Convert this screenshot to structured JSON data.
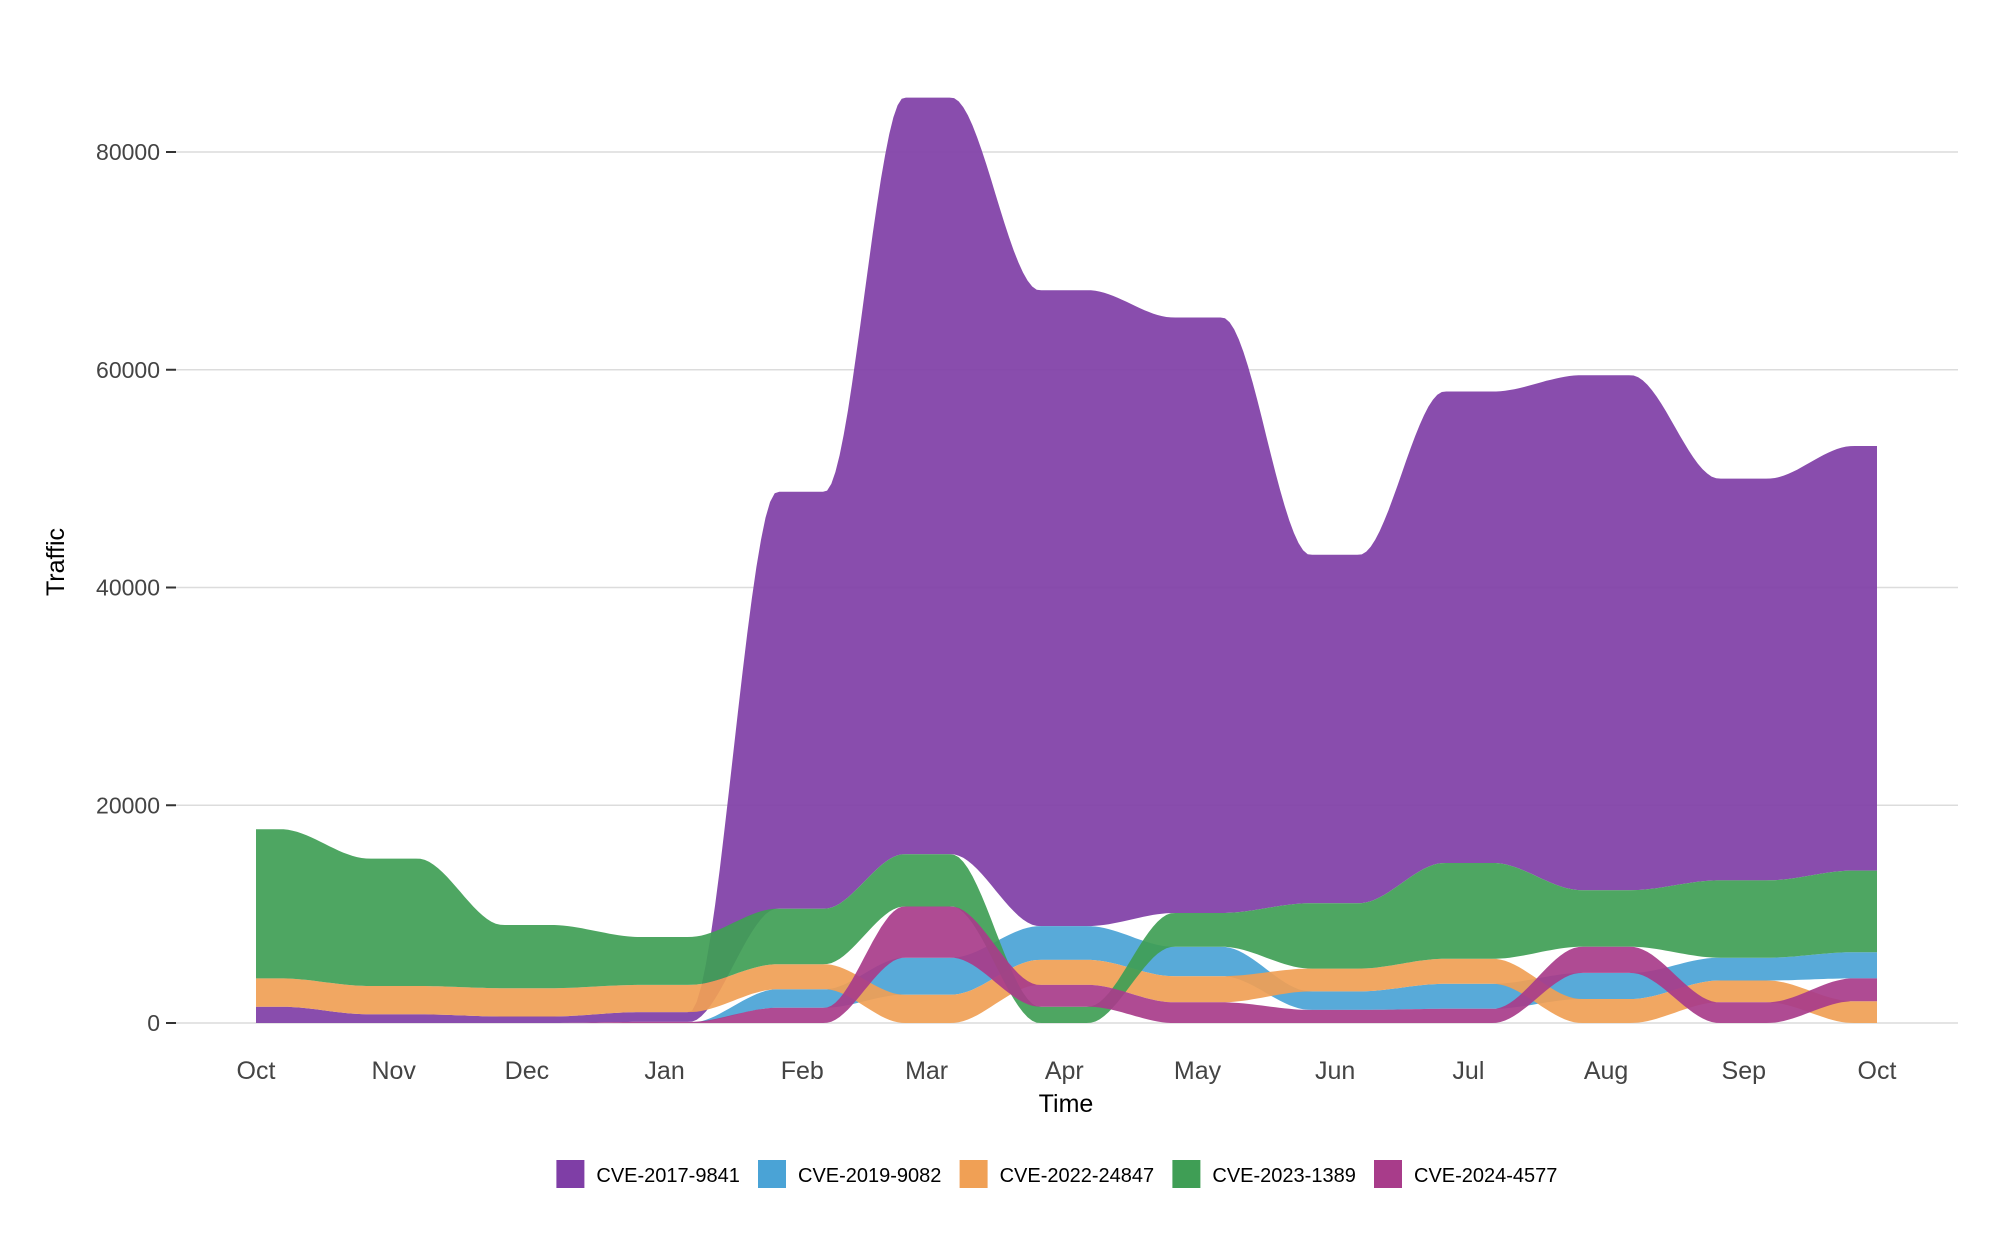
{
  "chart_data": {
    "type": "area",
    "subtype": "sorted stacked streamgraph (ridge)",
    "xlabel": "Time",
    "ylabel": "Traffic",
    "x": [
      "Oct",
      "Nov",
      "Dec",
      "Jan",
      "Feb",
      "Mar",
      "Apr",
      "May",
      "Jun",
      "Jul",
      "Aug",
      "Sep",
      "Oct"
    ],
    "yticks": [
      0,
      20000,
      40000,
      60000,
      80000
    ],
    "ylim": [
      0,
      89000
    ],
    "grid": "horizontal major",
    "legend_position": "bottom",
    "series": [
      {
        "name": "CVE-2017-9841",
        "color": "#7f3ea6",
        "values": [
          1500,
          800,
          600,
          900,
          38300,
          69500,
          58400,
          54700,
          32000,
          43300,
          47300,
          36900,
          39000
        ]
      },
      {
        "name": "CVE-2019-9082",
        "color": "#4aa3d6",
        "values": [
          0,
          0,
          0,
          0,
          1700,
          3400,
          3100,
          2700,
          1700,
          2300,
          2400,
          2100,
          2400
        ]
      },
      {
        "name": "CVE-2022-24847",
        "color": "#f0a055",
        "values": [
          2600,
          2600,
          2600,
          2500,
          2300,
          2600,
          2300,
          2400,
          2100,
          2300,
          2200,
          2000,
          2000
        ]
      },
      {
        "name": "CVE-2023-1389",
        "color": "#3f9e55",
        "values": [
          13700,
          11700,
          5800,
          4400,
          5100,
          4800,
          1500,
          3100,
          6000,
          8800,
          5200,
          7100,
          7500
        ]
      },
      {
        "name": "CVE-2024-4577",
        "color": "#a83c8a",
        "values": [
          0,
          0,
          0,
          100,
          1400,
          4700,
          2000,
          1900,
          1200,
          1300,
          2400,
          1900,
          2100
        ]
      }
    ]
  }
}
